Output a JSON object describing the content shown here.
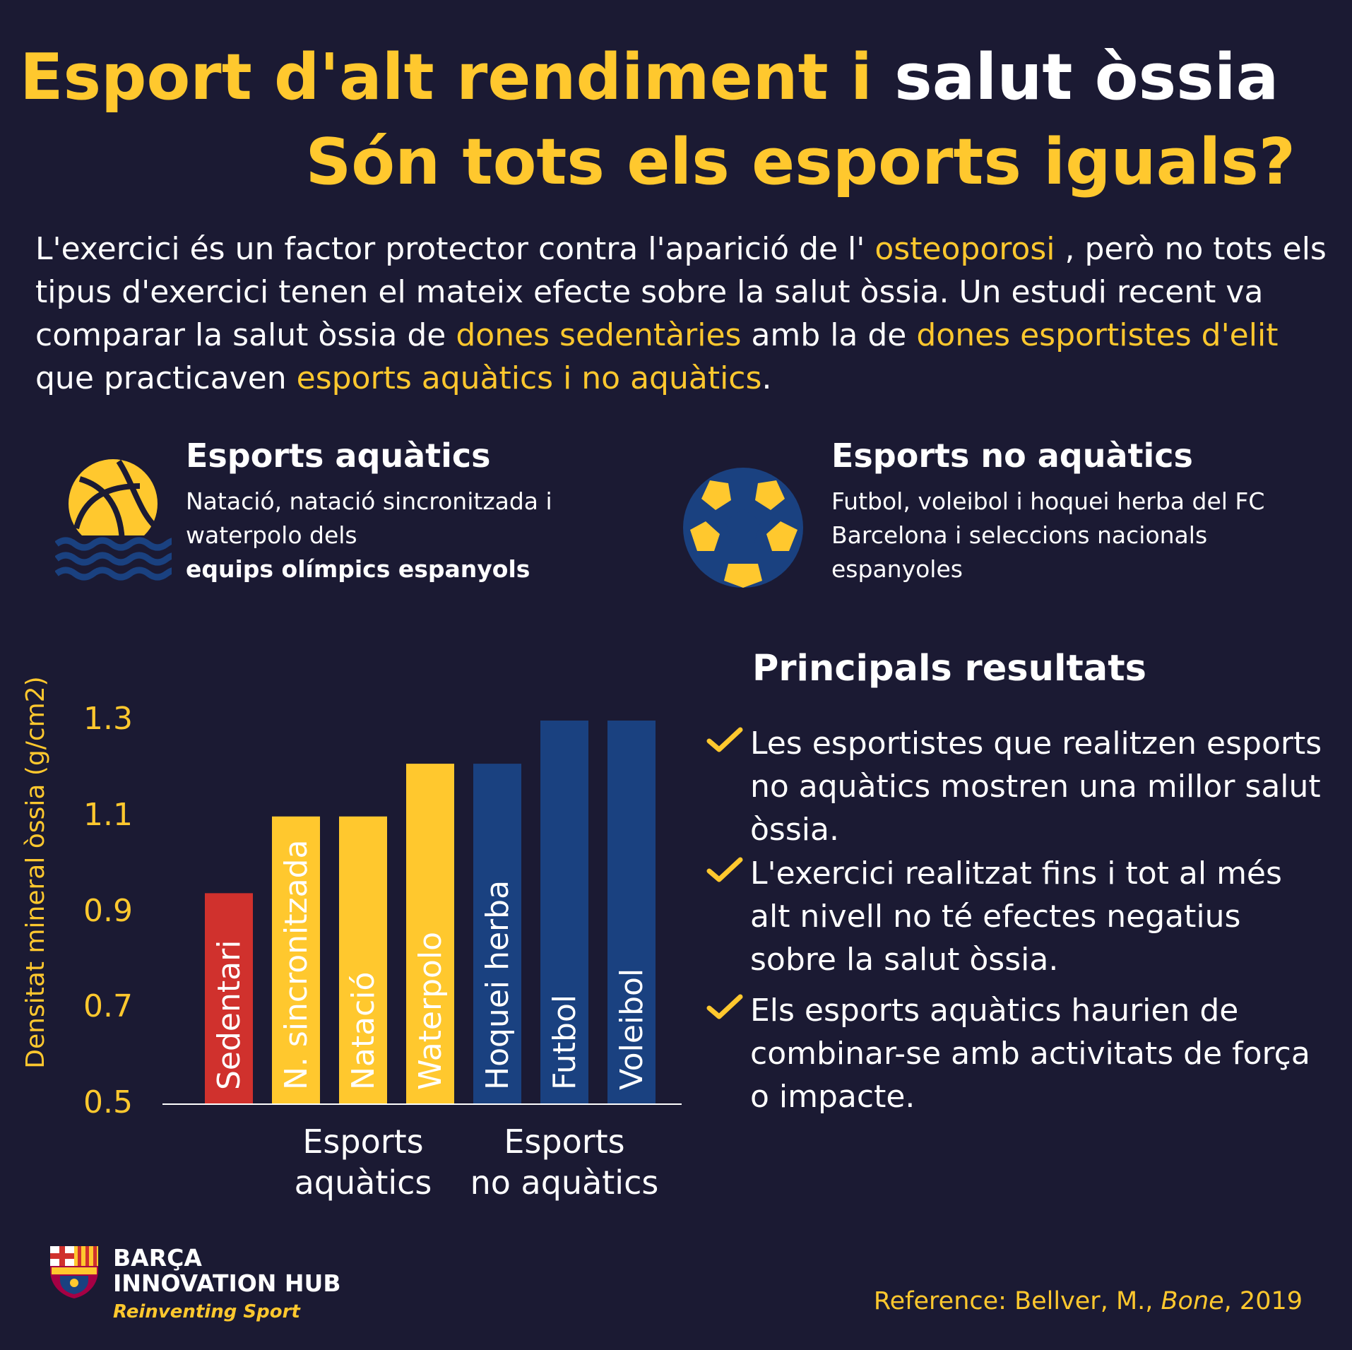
{
  "title": {
    "line1_yellow": "Esport d'alt rendiment i",
    "line1_white": "salut òssia",
    "line2": "Són tots els esports iguals?"
  },
  "intro": {
    "p1": "L'exercici és un factor protector contra l'aparició de l' ",
    "h1": "osteoporosi",
    "p2": " , però no tots els tipus d'exercici tenen el mateix efecte sobre la salut òssia. Un estudi recent va comparar la salut òssia de ",
    "h2": "dones sedentàries",
    "p3": "  amb la de ",
    "h3": "dones esportistes d'elit",
    "p4": " que practicaven  ",
    "h4": "esports aquàtics i no aquàtics",
    "p5": "."
  },
  "aquatic": {
    "title": "Esports aquàtics",
    "desc": "Natació, natació sincronitzada i waterpolo dels",
    "desc_bold": "equips olímpics espanyols"
  },
  "nonaquatic": {
    "title": "Esports no aquàtics",
    "desc": "Futbol, voleibol i hoquei herba del FC Barcelona i seleccions nacionals espanyoles"
  },
  "results": {
    "title": "Principals resultats",
    "items": [
      "Les esportistes que realitzen esports no aquàtics mostren una millor salut òssia.",
      "L'exercici realitzat fins i tot al més alt nivell no té efectes negatius sobre la salut òssia.",
      "Els esports aquàtics haurien de combinar-se amb activitats de força o impacte."
    ]
  },
  "chart_data": {
    "type": "bar",
    "ylabel": "Densitat mineral òssia (g/cm2)",
    "ylim": [
      0.5,
      1.3
    ],
    "yticks": [
      "1.3",
      "1.1",
      "0.9",
      "0.7",
      "0.5"
    ],
    "categories": [
      "Sedentari",
      "N. sincronitzada",
      "Natació",
      "Waterpolo",
      "Hoquei herba",
      "Futbol",
      "Voleibol"
    ],
    "values": [
      0.94,
      1.1,
      1.1,
      1.21,
      1.21,
      1.3,
      1.3
    ],
    "group_labels": [
      "Esports aquàtics",
      "Esports no aquàtics"
    ],
    "colors": {
      "sedentary": "#d0312d",
      "aquatic": "#ffc82e",
      "nonaquatic": "#1a4180"
    },
    "grid": false
  },
  "footer": {
    "logo_line1": "BARÇA",
    "logo_line2": "INNOVATION HUB",
    "tagline": "Reinventing Sport",
    "ref_prefix": "Reference: Bellver, M., ",
    "ref_journal": "Bone",
    "ref_suffix": ", 2019"
  },
  "icons": [
    "volleyball-water-icon",
    "soccer-ball-icon",
    "check-icon",
    "fcb-crest-icon"
  ]
}
